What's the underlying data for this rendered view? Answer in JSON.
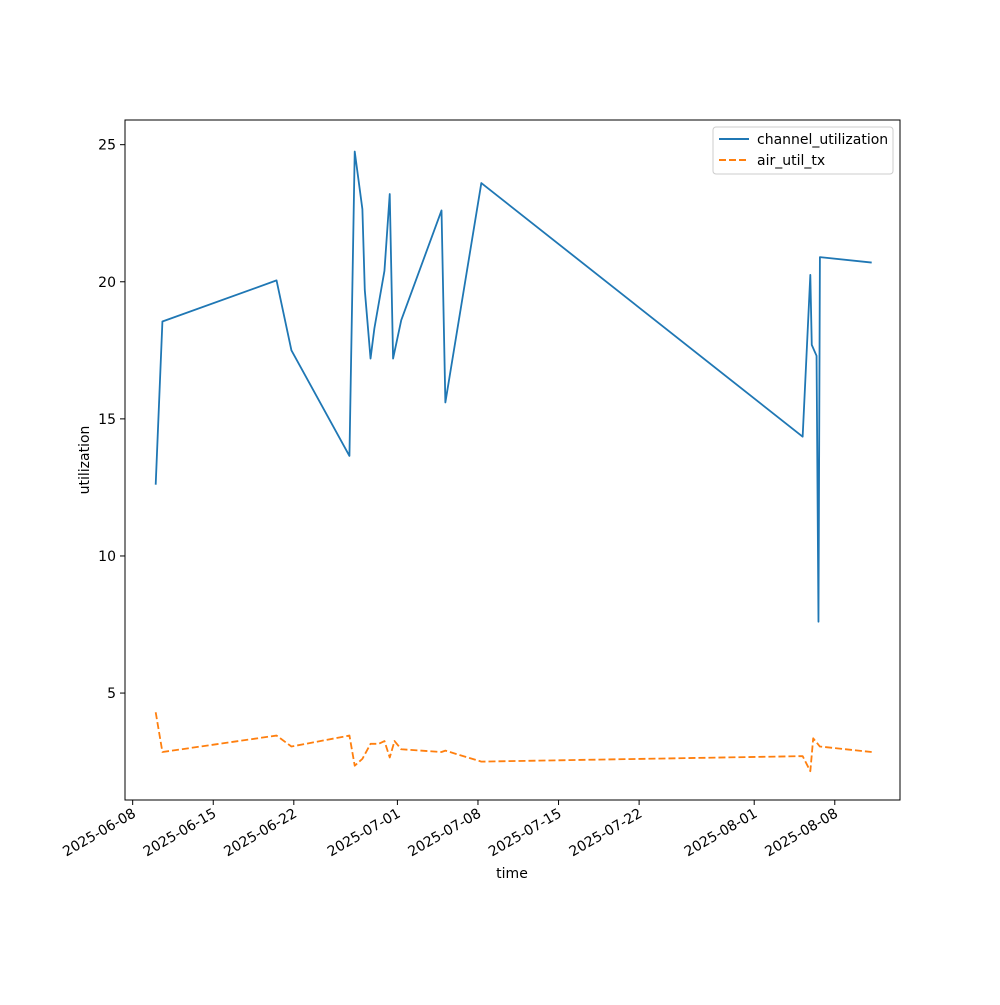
{
  "chart_data": {
    "type": "line",
    "title": "",
    "xlabel": "time",
    "ylabel": "utilization",
    "x_type": "date",
    "xlim": [
      "2025-06-07T08:00",
      "2025-08-13T16:00"
    ],
    "ylim": [
      1.1,
      25.9
    ],
    "x_ticks": [
      "2025-06-08",
      "2025-06-15",
      "2025-06-22",
      "2025-07-01",
      "2025-07-08",
      "2025-07-15",
      "2025-07-22",
      "2025-08-01",
      "2025-08-08"
    ],
    "y_ticks": [
      5,
      10,
      15,
      20,
      25
    ],
    "grid": false,
    "legend": {
      "position": "top-right",
      "entries": [
        "channel_utilization",
        "air_util_tx"
      ]
    },
    "series": [
      {
        "name": "channel_utilization",
        "color": "#1f77b4",
        "dash": "solid",
        "points": [
          {
            "x": "2025-06-10T00:00",
            "y": 12.6
          },
          {
            "x": "2025-06-10T04:00",
            "y": 14.3
          },
          {
            "x": "2025-06-10T14:00",
            "y": 18.55
          },
          {
            "x": "2025-06-20T12:00",
            "y": 20.05
          },
          {
            "x": "2025-06-21T19:00",
            "y": 17.5
          },
          {
            "x": "2025-06-26T20:00",
            "y": 13.65
          },
          {
            "x": "2025-06-27T07:00",
            "y": 24.75
          },
          {
            "x": "2025-06-27T23:00",
            "y": 22.65
          },
          {
            "x": "2025-06-28T04:00",
            "y": 19.7
          },
          {
            "x": "2025-06-28T16:00",
            "y": 17.2
          },
          {
            "x": "2025-06-29T00:00",
            "y": 18.3
          },
          {
            "x": "2025-06-29T21:00",
            "y": 20.4
          },
          {
            "x": "2025-06-30T08:00",
            "y": 23.2
          },
          {
            "x": "2025-06-30T15:00",
            "y": 17.2
          },
          {
            "x": "2025-07-01T08:00",
            "y": 18.6
          },
          {
            "x": "2025-07-04T20:00",
            "y": 22.6
          },
          {
            "x": "2025-07-05T04:00",
            "y": 15.6
          },
          {
            "x": "2025-07-08T07:00",
            "y": 23.6
          },
          {
            "x": "2025-08-05T05:00",
            "y": 14.35
          },
          {
            "x": "2025-08-05T21:00",
            "y": 20.25
          },
          {
            "x": "2025-08-06T00:00",
            "y": 17.7
          },
          {
            "x": "2025-08-06T10:00",
            "y": 17.3
          },
          {
            "x": "2025-08-06T14:00",
            "y": 7.6
          },
          {
            "x": "2025-08-06T17:00",
            "y": 20.9
          },
          {
            "x": "2025-08-11T05:00",
            "y": 20.7
          }
        ]
      },
      {
        "name": "air_util_tx",
        "color": "#ff7f0e",
        "dash": "dashed",
        "points": [
          {
            "x": "2025-06-10T00:00",
            "y": 4.3
          },
          {
            "x": "2025-06-10T14:00",
            "y": 2.85
          },
          {
            "x": "2025-06-20T12:00",
            "y": 3.45
          },
          {
            "x": "2025-06-21T19:00",
            "y": 3.05
          },
          {
            "x": "2025-06-26T20:00",
            "y": 3.45
          },
          {
            "x": "2025-06-27T07:00",
            "y": 2.35
          },
          {
            "x": "2025-06-27T23:00",
            "y": 2.6
          },
          {
            "x": "2025-06-28T16:00",
            "y": 3.15
          },
          {
            "x": "2025-06-29T09:00",
            "y": 3.15
          },
          {
            "x": "2025-06-29T21:00",
            "y": 3.25
          },
          {
            "x": "2025-06-30T08:00",
            "y": 2.65
          },
          {
            "x": "2025-06-30T18:00",
            "y": 3.25
          },
          {
            "x": "2025-07-01T08:00",
            "y": 2.95
          },
          {
            "x": "2025-07-04T20:00",
            "y": 2.85
          },
          {
            "x": "2025-07-05T04:00",
            "y": 2.9
          },
          {
            "x": "2025-07-08T07:00",
            "y": 2.5
          },
          {
            "x": "2025-08-05T05:00",
            "y": 2.7
          },
          {
            "x": "2025-08-05T21:00",
            "y": 2.15
          },
          {
            "x": "2025-08-06T03:00",
            "y": 3.35
          },
          {
            "x": "2025-08-06T17:00",
            "y": 3.05
          },
          {
            "x": "2025-08-11T05:00",
            "y": 2.85
          }
        ]
      }
    ]
  }
}
